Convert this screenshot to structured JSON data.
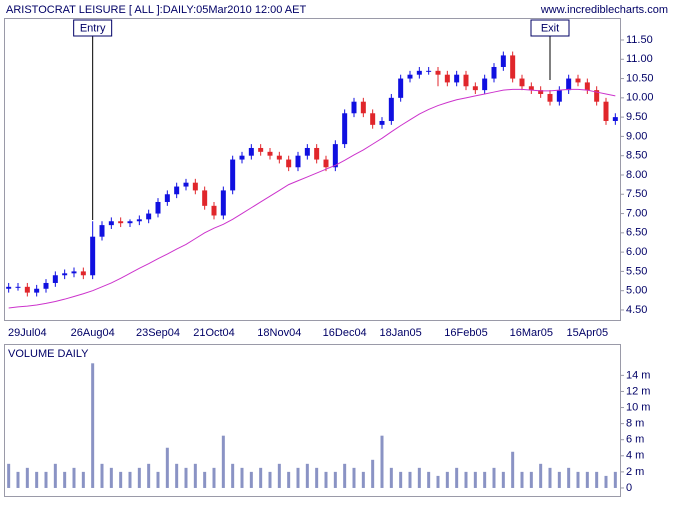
{
  "chart_data": [
    {
      "type": "candlestick",
      "title": "ARISTOCRAT LEISURE [ ALL ]:DAILY:05Mar2010 12:00 AET",
      "watermark": "www.incrediblecharts.com",
      "annotations": [
        {
          "text": "Entry"
        },
        {
          "text": "Exit"
        }
      ],
      "categories": [
        null,
        null,
        "29Jul04",
        null,
        null,
        null,
        null,
        null,
        null,
        "26Aug04",
        null,
        null,
        null,
        null,
        null,
        null,
        "23Sep04",
        null,
        null,
        null,
        null,
        null,
        "21Oct04",
        null,
        null,
        null,
        null,
        null,
        null,
        "18Nov04",
        null,
        null,
        null,
        null,
        null,
        null,
        "16Dec04",
        null,
        null,
        null,
        null,
        null,
        "18Jan05",
        null,
        null,
        null,
        null,
        null,
        null,
        "16Feb05",
        null,
        null,
        null,
        null,
        null,
        null,
        "16Mar05",
        null,
        null,
        null,
        null,
        null,
        "15Apr05",
        null,
        null,
        null
      ],
      "open": [
        5.05,
        5.1,
        5.1,
        4.95,
        5.05,
        5.2,
        5.4,
        5.45,
        5.5,
        5.4,
        6.4,
        6.7,
        6.8,
        6.75,
        6.8,
        6.85,
        7.0,
        7.3,
        7.5,
        7.7,
        7.8,
        7.6,
        7.2,
        6.95,
        7.6,
        8.4,
        8.5,
        8.7,
        8.6,
        8.5,
        8.4,
        8.2,
        8.5,
        8.7,
        8.4,
        8.2,
        8.8,
        9.6,
        9.9,
        9.6,
        9.3,
        9.4,
        10.0,
        10.5,
        10.6,
        10.7,
        10.7,
        10.6,
        10.4,
        10.6,
        10.3,
        10.2,
        10.5,
        10.8,
        11.1,
        10.5,
        10.3,
        10.2,
        10.1,
        9.9,
        10.2,
        10.5,
        10.4,
        10.2,
        9.9,
        9.4
      ],
      "high": [
        5.2,
        5.2,
        5.2,
        5.15,
        5.3,
        5.5,
        5.55,
        5.6,
        5.6,
        6.8,
        6.8,
        6.9,
        6.9,
        6.85,
        6.95,
        7.1,
        7.4,
        7.6,
        7.8,
        7.9,
        7.9,
        7.7,
        7.3,
        7.7,
        8.5,
        8.6,
        8.8,
        8.8,
        8.7,
        8.6,
        8.5,
        8.6,
        8.8,
        8.8,
        8.5,
        8.9,
        9.7,
        10.0,
        10.0,
        9.7,
        9.5,
        10.1,
        10.6,
        10.7,
        10.8,
        10.8,
        10.8,
        10.7,
        10.7,
        10.7,
        10.4,
        10.6,
        10.9,
        11.2,
        11.2,
        10.6,
        10.4,
        10.3,
        10.2,
        10.3,
        10.6,
        10.6,
        10.5,
        10.3,
        10.0,
        9.6
      ],
      "low": [
        4.95,
        5.0,
        4.85,
        4.85,
        4.95,
        5.1,
        5.3,
        5.35,
        5.3,
        5.3,
        6.3,
        6.6,
        6.65,
        6.65,
        6.7,
        6.75,
        6.9,
        7.2,
        7.4,
        7.6,
        7.5,
        7.1,
        6.85,
        6.85,
        7.5,
        8.3,
        8.4,
        8.5,
        8.4,
        8.3,
        8.1,
        8.1,
        8.4,
        8.3,
        8.1,
        8.1,
        8.7,
        9.5,
        9.5,
        9.2,
        9.2,
        9.3,
        9.9,
        10.4,
        10.5,
        10.6,
        10.3,
        10.3,
        10.3,
        10.2,
        10.1,
        10.1,
        10.4,
        10.7,
        10.4,
        10.2,
        10.1,
        10.0,
        9.8,
        9.8,
        10.1,
        10.3,
        10.1,
        9.8,
        9.3,
        9.3
      ],
      "close": [
        5.1,
        5.1,
        4.95,
        5.05,
        5.2,
        5.4,
        5.45,
        5.5,
        5.4,
        6.4,
        6.7,
        6.8,
        6.75,
        6.8,
        6.85,
        7.0,
        7.3,
        7.5,
        7.7,
        7.8,
        7.6,
        7.2,
        6.95,
        7.6,
        8.4,
        8.5,
        8.7,
        8.6,
        8.5,
        8.4,
        8.2,
        8.5,
        8.7,
        8.4,
        8.2,
        8.8,
        9.6,
        9.9,
        9.6,
        9.3,
        9.4,
        10.0,
        10.5,
        10.6,
        10.7,
        10.7,
        10.6,
        10.4,
        10.6,
        10.3,
        10.2,
        10.5,
        10.8,
        11.1,
        10.5,
        10.3,
        10.2,
        10.1,
        9.9,
        10.2,
        10.5,
        10.4,
        10.2,
        9.9,
        9.4,
        9.5
      ],
      "up_color": "#1010e0",
      "down_color": "#e0262b",
      "series": [
        {
          "color": "#cc33cc",
          "values": [
            4.55,
            4.58,
            4.6,
            4.63,
            4.67,
            4.72,
            4.78,
            4.85,
            4.92,
            5.0,
            5.1,
            5.2,
            5.32,
            5.45,
            5.58,
            5.7,
            5.83,
            5.95,
            6.08,
            6.2,
            6.35,
            6.5,
            6.62,
            6.72,
            6.85,
            7.0,
            7.15,
            7.3,
            7.45,
            7.6,
            7.75,
            7.85,
            7.95,
            8.05,
            8.15,
            8.25,
            8.38,
            8.52,
            8.65,
            8.8,
            8.95,
            9.12,
            9.28,
            9.43,
            9.58,
            9.7,
            9.8,
            9.88,
            9.95,
            10.0,
            10.05,
            10.1,
            10.15,
            10.2,
            10.22,
            10.22,
            10.2,
            10.18,
            10.18,
            10.2,
            10.22,
            10.22,
            10.2,
            10.15,
            10.1,
            10.05
          ]
        }
      ],
      "ylim": [
        4.24,
        12.07
      ],
      "yticks": [
        {
          "value": 4.5,
          "label": "4.50"
        },
        {
          "value": 5,
          "label": "5.00"
        },
        {
          "value": 5.5,
          "label": "5.50"
        },
        {
          "value": 6,
          "label": "6.00"
        },
        {
          "value": 6.5,
          "label": "6.50"
        },
        {
          "value": 7,
          "label": "7.00"
        },
        {
          "value": 7.5,
          "label": "7.50"
        },
        {
          "value": 8,
          "label": "8.00"
        },
        {
          "value": 8.5,
          "label": "8.50"
        },
        {
          "value": 9,
          "label": "9.00"
        },
        {
          "value": 9.5,
          "label": "9.50"
        },
        {
          "value": 10,
          "label": "10.00"
        },
        {
          "value": 10.5,
          "label": "10.50"
        },
        {
          "value": 11,
          "label": "11.00"
        },
        {
          "value": 11.5,
          "label": "11.50"
        }
      ]
    },
    {
      "type": "bar",
      "title": "VOLUME DAILY",
      "color": "#8a93c4",
      "values": [
        3,
        2,
        2.5,
        2,
        2,
        3,
        2,
        2.5,
        2,
        15.5,
        3,
        2.5,
        2,
        2,
        2.5,
        3,
        2,
        5,
        3,
        2.5,
        3,
        2,
        2.5,
        6.5,
        3,
        2.5,
        2,
        2.5,
        2,
        3,
        2,
        2.5,
        3,
        2.5,
        2,
        2,
        3,
        2.5,
        2,
        3.5,
        6.5,
        2.5,
        2,
        2,
        2.5,
        2,
        1.5,
        2,
        2.5,
        2,
        2,
        2,
        2.5,
        2,
        4.5,
        2,
        2,
        3,
        2.5,
        2,
        2.5,
        2,
        2,
        2,
        1.5,
        2
      ],
      "ylim": [
        -1,
        17.9
      ],
      "yticks": [
        0,
        {
          "value": 2,
          "label": "2 m"
        },
        {
          "value": 4,
          "label": "4 m"
        },
        {
          "value": 6,
          "label": "6 m"
        },
        {
          "value": 8,
          "label": "8 m"
        },
        {
          "value": 10,
          "label": "10 m"
        },
        {
          "value": 12,
          "label": "12 m"
        },
        {
          "value": 14,
          "label": "14 m"
        }
      ]
    }
  ]
}
